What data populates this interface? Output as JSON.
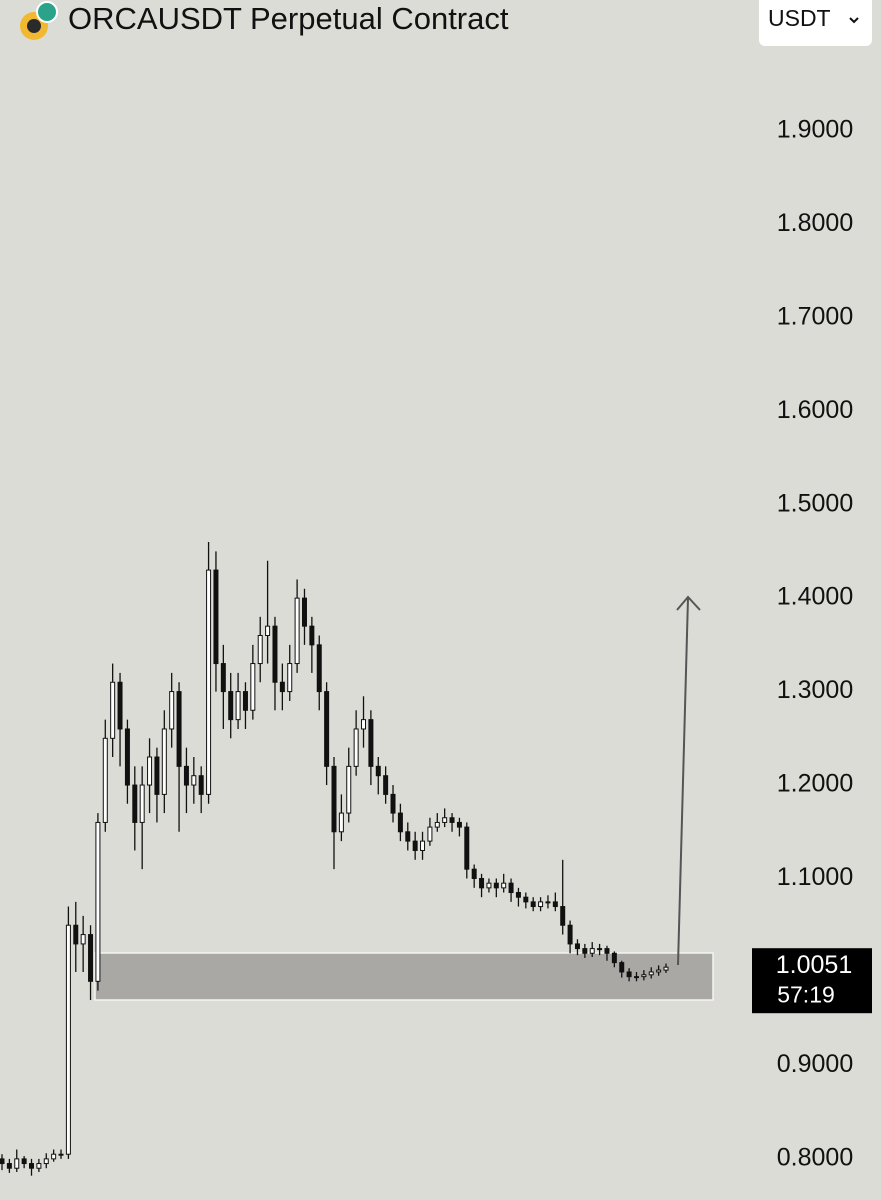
{
  "chart_data": {
    "type": "candlestick",
    "title": "ORCAUSDT Perpetual Contract",
    "currency": "USDT",
    "current_price": 1.0051,
    "countdown": "57:19",
    "ylim": [
      0.756,
      2.04
    ],
    "yticks": [
      {
        "value": 0.8,
        "label": "0.8000"
      },
      {
        "value": 0.9,
        "label": "0.9000"
      },
      {
        "value": 1.1,
        "label": "1.1000"
      },
      {
        "value": 1.2,
        "label": "1.2000"
      },
      {
        "value": 1.3,
        "label": "1.3000"
      },
      {
        "value": 1.4,
        "label": "1.4000"
      },
      {
        "value": 1.5,
        "label": "1.5000"
      },
      {
        "value": 1.6,
        "label": "1.6000"
      },
      {
        "value": 1.7,
        "label": "1.7000"
      },
      {
        "value": 1.8,
        "label": "1.8000"
      },
      {
        "value": 1.9,
        "label": "1.9000"
      }
    ],
    "open": [
      0.8,
      0.795,
      0.79,
      0.8,
      0.795,
      0.79,
      0.795,
      0.8,
      0.805,
      0.805,
      1.05,
      1.03,
      1.04,
      0.99,
      1.16,
      1.25,
      1.31,
      1.26,
      1.2,
      1.16,
      1.2,
      1.23,
      1.19,
      1.26,
      1.3,
      1.22,
      1.2,
      1.21,
      1.19,
      1.43,
      1.33,
      1.3,
      1.27,
      1.3,
      1.28,
      1.33,
      1.36,
      1.37,
      1.31,
      1.3,
      1.33,
      1.4,
      1.37,
      1.35,
      1.3,
      1.22,
      1.15,
      1.17,
      1.22,
      1.26,
      1.27,
      1.22,
      1.21,
      1.19,
      1.17,
      1.15,
      1.14,
      1.13,
      1.14,
      1.155,
      1.16,
      1.165,
      1.16,
      1.155,
      1.11,
      1.1,
      1.09,
      1.095,
      1.09,
      1.095,
      1.085,
      1.08,
      1.075,
      1.07,
      1.075,
      1.075,
      1.07,
      1.05,
      1.03,
      1.025,
      1.02,
      1.025,
      1.025,
      1.02,
      1.01,
      1.0,
      0.995,
      0.995,
      0.997,
      1.0,
      1.002
    ],
    "high": [
      0.805,
      0.8,
      0.81,
      0.803,
      0.8,
      0.8,
      0.806,
      0.81,
      0.81,
      1.07,
      1.075,
      1.06,
      1.05,
      1.17,
      1.27,
      1.33,
      1.32,
      1.27,
      1.22,
      1.22,
      1.25,
      1.24,
      1.28,
      1.32,
      1.31,
      1.24,
      1.23,
      1.22,
      1.46,
      1.45,
      1.35,
      1.32,
      1.32,
      1.31,
      1.35,
      1.38,
      1.44,
      1.38,
      1.33,
      1.35,
      1.42,
      1.41,
      1.38,
      1.36,
      1.31,
      1.23,
      1.19,
      1.24,
      1.28,
      1.295,
      1.28,
      1.23,
      1.22,
      1.2,
      1.18,
      1.16,
      1.15,
      1.15,
      1.165,
      1.17,
      1.175,
      1.17,
      1.165,
      1.16,
      1.115,
      1.105,
      1.1,
      1.1,
      1.105,
      1.1,
      1.09,
      1.085,
      1.08,
      1.08,
      1.082,
      1.085,
      1.12,
      1.055,
      1.035,
      1.03,
      1.032,
      1.03,
      1.028,
      1.022,
      1.012,
      1.004,
      1.0,
      1.002,
      1.005,
      1.007,
      1.009
    ],
    "low": [
      0.788,
      0.785,
      0.786,
      0.79,
      0.782,
      0.786,
      0.79,
      0.797,
      0.8,
      0.8,
      1.0,
      1.0,
      0.97,
      0.98,
      1.15,
      1.23,
      1.22,
      1.18,
      1.13,
      1.11,
      1.17,
      1.16,
      1.17,
      1.24,
      1.15,
      1.17,
      1.18,
      1.17,
      1.18,
      1.3,
      1.26,
      1.25,
      1.26,
      1.26,
      1.27,
      1.31,
      1.33,
      1.28,
      1.28,
      1.29,
      1.32,
      1.35,
      1.32,
      1.28,
      1.2,
      1.11,
      1.14,
      1.16,
      1.21,
      1.24,
      1.2,
      1.19,
      1.18,
      1.16,
      1.14,
      1.13,
      1.12,
      1.12,
      1.135,
      1.15,
      1.155,
      1.15,
      1.145,
      1.1,
      1.09,
      1.08,
      1.085,
      1.08,
      1.085,
      1.075,
      1.07,
      1.068,
      1.065,
      1.065,
      1.068,
      1.065,
      1.04,
      1.02,
      1.018,
      1.015,
      1.016,
      1.018,
      1.012,
      1.005,
      0.994,
      0.99,
      0.99,
      0.991,
      0.993,
      0.996,
      0.999
    ],
    "close": [
      0.795,
      0.79,
      0.8,
      0.795,
      0.79,
      0.795,
      0.8,
      0.805,
      0.805,
      1.05,
      1.03,
      1.04,
      0.99,
      1.16,
      1.25,
      1.31,
      1.26,
      1.2,
      1.16,
      1.2,
      1.23,
      1.19,
      1.26,
      1.3,
      1.22,
      1.2,
      1.21,
      1.19,
      1.43,
      1.33,
      1.3,
      1.27,
      1.3,
      1.28,
      1.33,
      1.36,
      1.37,
      1.31,
      1.3,
      1.33,
      1.4,
      1.37,
      1.35,
      1.3,
      1.22,
      1.15,
      1.17,
      1.22,
      1.26,
      1.27,
      1.22,
      1.21,
      1.19,
      1.17,
      1.15,
      1.14,
      1.13,
      1.14,
      1.155,
      1.16,
      1.165,
      1.16,
      1.155,
      1.11,
      1.1,
      1.09,
      1.095,
      1.09,
      1.095,
      1.085,
      1.08,
      1.075,
      1.07,
      1.075,
      1.075,
      1.07,
      1.05,
      1.03,
      1.025,
      1.02,
      1.025,
      1.025,
      1.02,
      1.01,
      1.0,
      0.995,
      0.995,
      0.997,
      1.0,
      1.002,
      1.0051
    ],
    "up_color": "#ffffff",
    "down_color": "#111111"
  }
}
